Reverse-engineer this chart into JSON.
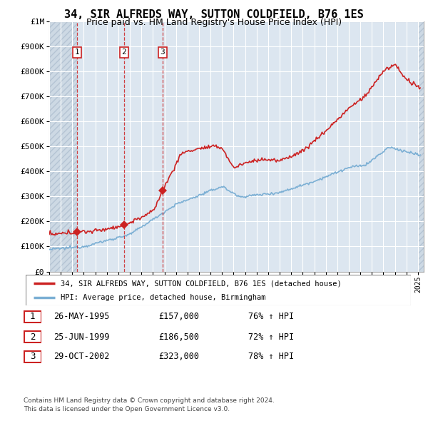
{
  "title": "34, SIR ALFREDS WAY, SUTTON COLDFIELD, B76 1ES",
  "subtitle": "Price paid vs. HM Land Registry's House Price Index (HPI)",
  "yticks": [
    0,
    100000,
    200000,
    300000,
    400000,
    500000,
    600000,
    700000,
    800000,
    900000,
    1000000
  ],
  "ytick_labels": [
    "£0",
    "£100K",
    "£200K",
    "£300K",
    "£400K",
    "£500K",
    "£600K",
    "£700K",
    "£800K",
    "£900K",
    "£1M"
  ],
  "xlim_start": 1993.0,
  "xlim_end": 2025.5,
  "ylim_min": 0,
  "ylim_max": 1000000,
  "bg_color": "#ffffff",
  "plot_bg_color": "#dce6f0",
  "hatch_left_color": "#c8d4e0",
  "grid_color": "#ffffff",
  "transactions": [
    {
      "label": "1",
      "date_str": "26-MAY-1995",
      "year": 1995.4,
      "price": 157000
    },
    {
      "label": "2",
      "date_str": "25-JUN-1999",
      "year": 1999.5,
      "price": 186500
    },
    {
      "label": "3",
      "date_str": "29-OCT-2002",
      "year": 2002.83,
      "price": 323000
    }
  ],
  "red_line_color": "#cc2222",
  "blue_line_color": "#7bafd4",
  "vline_color": "#cc2222",
  "legend_label_red": "34, SIR ALFREDS WAY, SUTTON COLDFIELD, B76 1ES (detached house)",
  "legend_label_blue": "HPI: Average price, detached house, Birmingham",
  "footer1": "Contains HM Land Registry data © Crown copyright and database right 2024.",
  "footer2": "This data is licensed under the Open Government Licence v3.0.",
  "table_rows": [
    [
      "1",
      "26-MAY-1995",
      "£157,000",
      "76% ↑ HPI"
    ],
    [
      "2",
      "25-JUN-1999",
      "£186,500",
      "72% ↑ HPI"
    ],
    [
      "3",
      "29-OCT-2002",
      "£323,000",
      "78% ↑ HPI"
    ]
  ]
}
